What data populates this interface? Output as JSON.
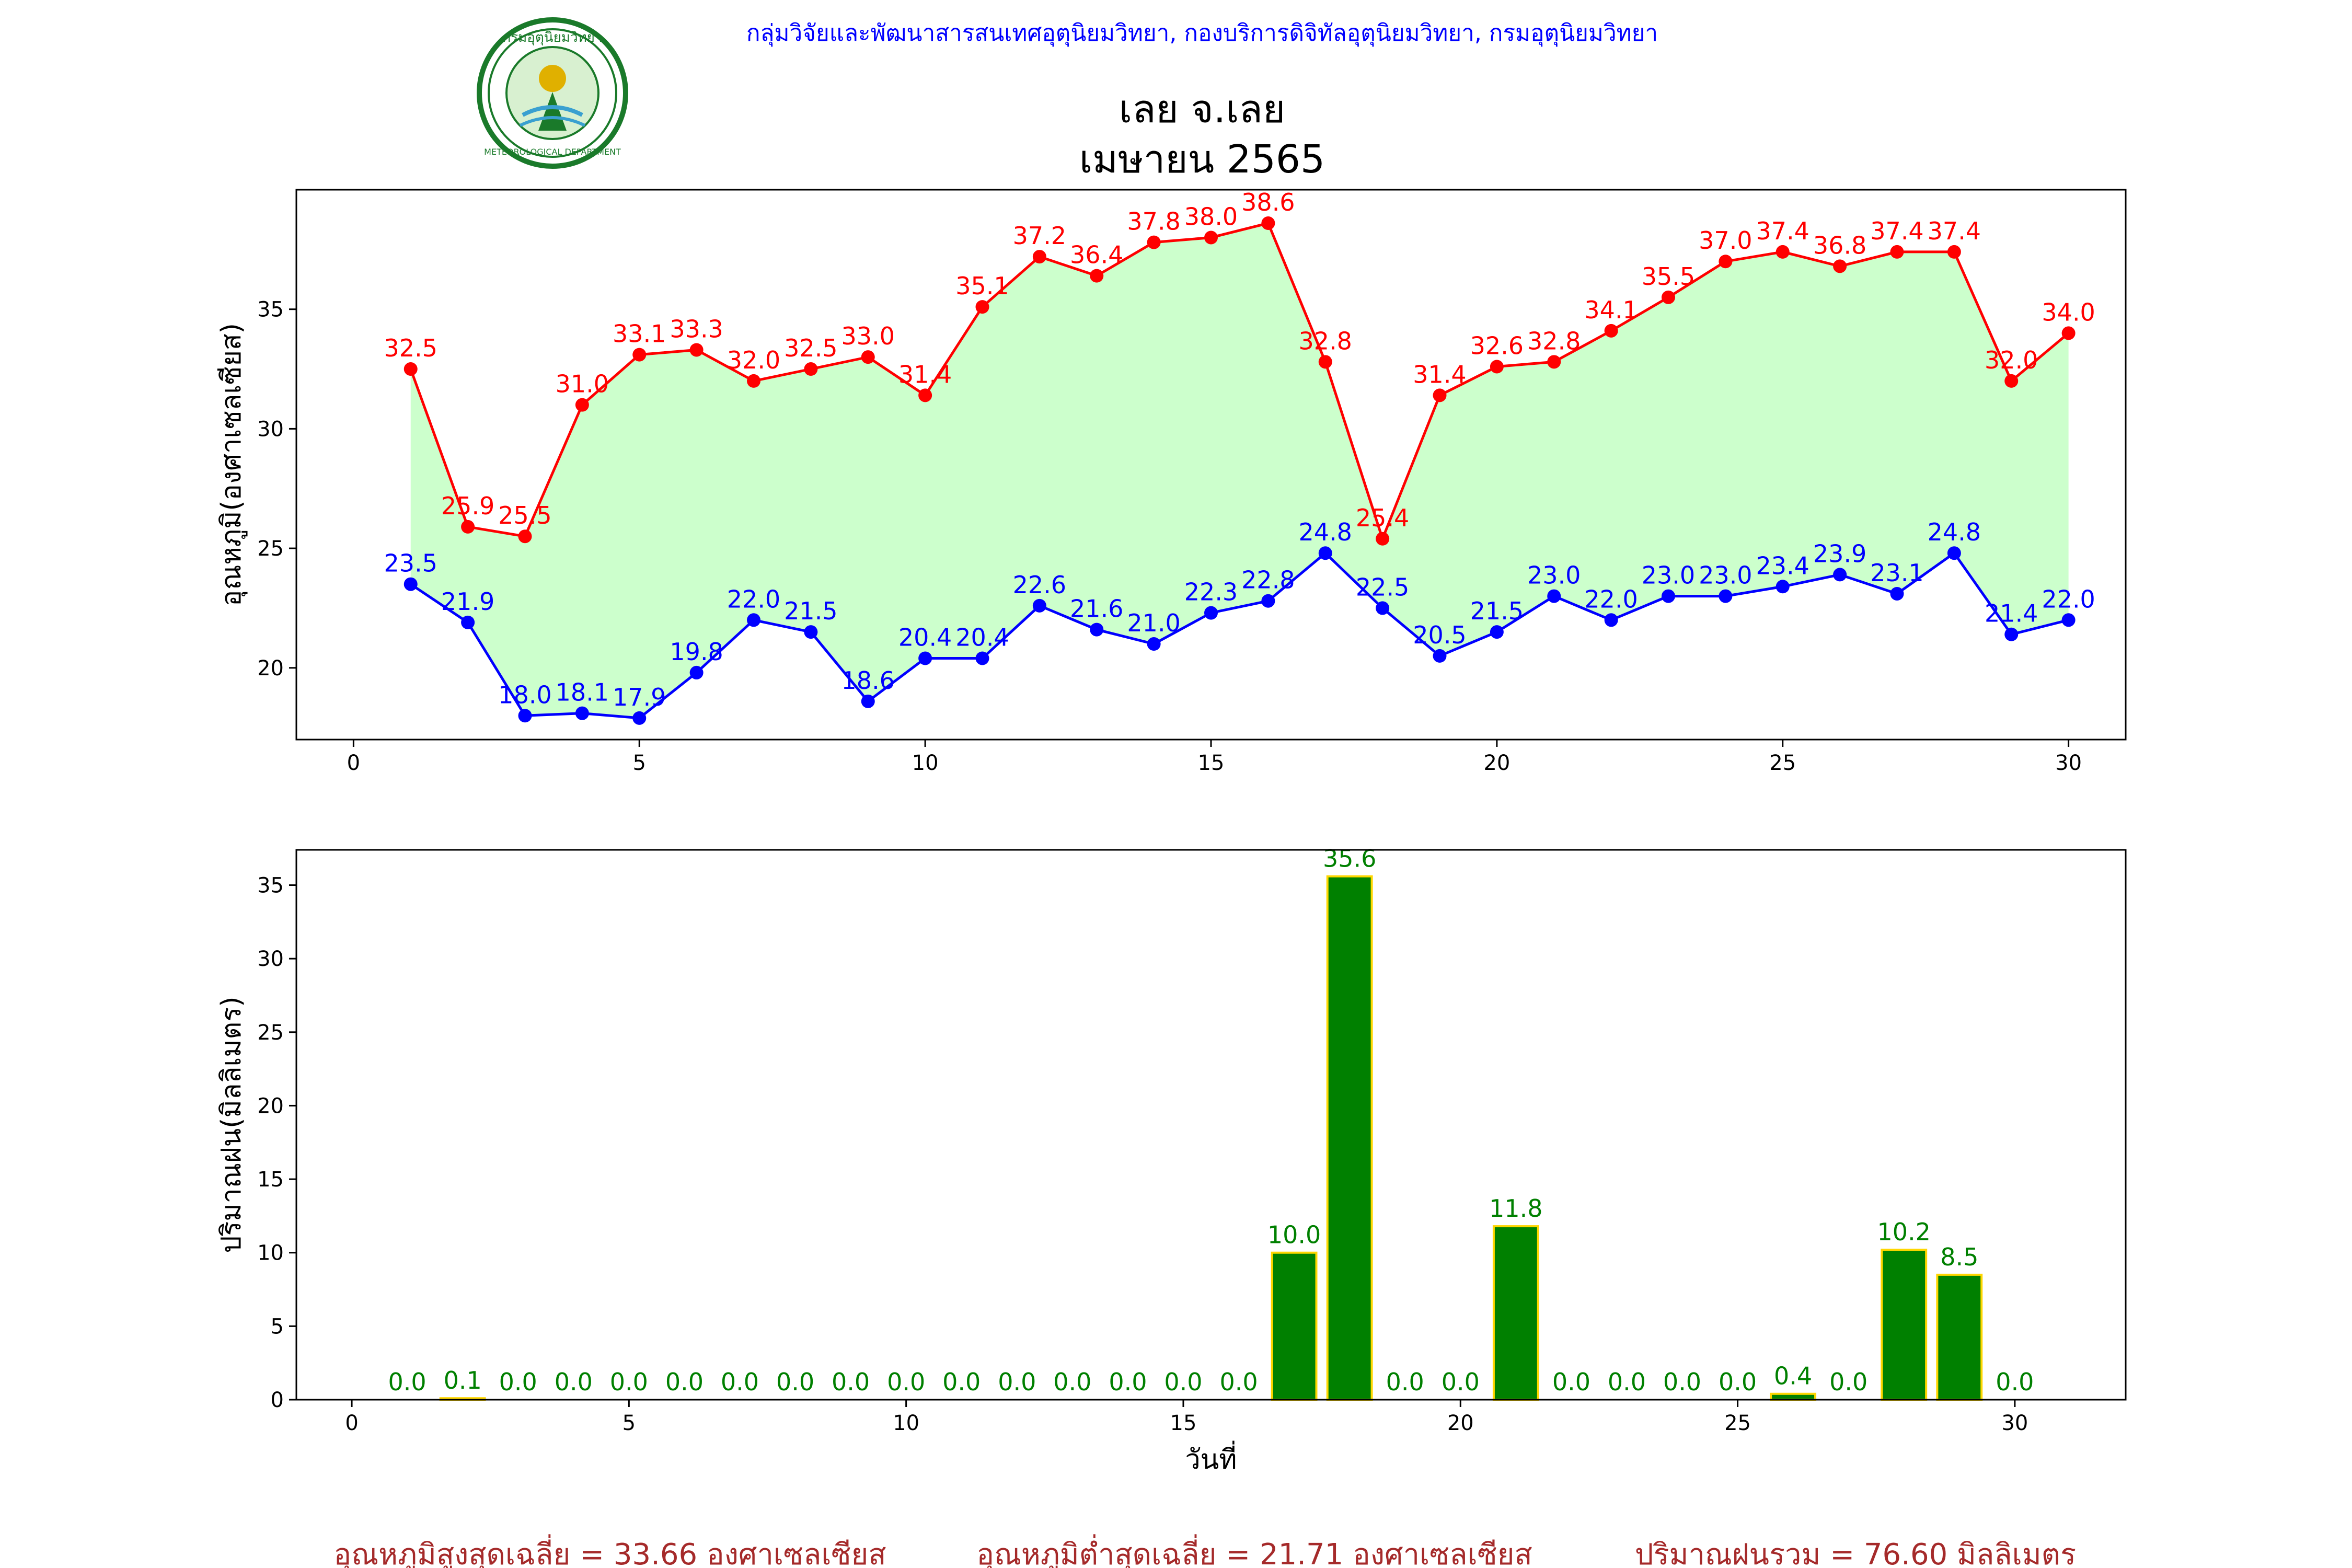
{
  "header": {
    "agency_line": "กลุ่มวิจัยและพัฒนาสารสนเทศอุตุนิยมวิทยา, กองบริการดิจิทัลอุตุนิยมวิทยา, กรมอุตุนิยมวิทยา",
    "agency_color": "#0000ff",
    "title_line1": "เลย จ.เลย",
    "title_line2": "เมษายน 2565",
    "logo": {
      "icon": "meteorological-department-seal-icon",
      "text_top": "กรมอุตุนิยมวิทยา",
      "text_bottom": "METEOROLOGICAL DEPARTMENT",
      "color": "#1a7a2a"
    }
  },
  "summary": {
    "avg_max_text": "อุณหภูมิสูงสุดเฉลี่ย = 33.66 องศาเซลเซียส",
    "avg_min_text": "อุณหภูมิต่ำสุดเฉลี่ย = 21.71 องศาเซลเซียส",
    "total_rain_text": "ปริมาณฝนรวม = 76.60 มิลลิเมตร",
    "color": "#a52a2a"
  },
  "chart_data": [
    {
      "type": "line",
      "ylabel": "อุณหภูมิ(องศาเซลเซียส)",
      "xlabel": "",
      "xlim": [
        -1,
        31
      ],
      "ylim": [
        17,
        40
      ],
      "xticks": [
        0,
        5,
        10,
        15,
        20,
        25,
        30
      ],
      "yticks": [
        20,
        25,
        30,
        35
      ],
      "x": [
        1,
        2,
        3,
        4,
        5,
        6,
        7,
        8,
        9,
        10,
        11,
        12,
        13,
        14,
        15,
        16,
        17,
        18,
        19,
        20,
        21,
        22,
        23,
        24,
        25,
        26,
        27,
        28,
        29,
        30
      ],
      "fill_between": {
        "color": "#ccffcc"
      },
      "series": [
        {
          "role": "max",
          "color": "#ff0000",
          "values": [
            32.5,
            25.9,
            25.5,
            31.0,
            33.1,
            33.3,
            32.0,
            32.5,
            33.0,
            31.4,
            35.1,
            37.2,
            36.4,
            37.8,
            38.0,
            38.6,
            32.8,
            25.4,
            31.4,
            32.6,
            32.8,
            34.1,
            35.5,
            37.0,
            37.4,
            36.8,
            37.4,
            37.4,
            32.0,
            34.0
          ]
        },
        {
          "role": "min",
          "color": "#0000ff",
          "values": [
            23.5,
            21.9,
            18.0,
            18.1,
            17.9,
            19.8,
            22.0,
            21.5,
            18.6,
            20.4,
            20.4,
            22.6,
            21.6,
            21.0,
            22.3,
            22.8,
            24.8,
            22.5,
            20.5,
            21.5,
            23.0,
            22.0,
            23.0,
            23.0,
            23.4,
            23.9,
            23.1,
            24.8,
            21.4,
            22.0
          ]
        }
      ]
    },
    {
      "type": "bar",
      "ylabel": "ปริมาณฝน(มิลลิเมตร)",
      "xlabel": "วันที่",
      "xlim": [
        -1,
        32
      ],
      "ylim": [
        0,
        37.4
      ],
      "xticks": [
        0,
        5,
        10,
        15,
        20,
        25,
        30
      ],
      "yticks": [
        0,
        5,
        10,
        15,
        20,
        25,
        30,
        35
      ],
      "bar_color": "#008000",
      "edge_color": "#ffd700",
      "label_color": "#008000",
      "x": [
        1,
        2,
        3,
        4,
        5,
        6,
        7,
        8,
        9,
        10,
        11,
        12,
        13,
        14,
        15,
        16,
        17,
        18,
        19,
        20,
        21,
        22,
        23,
        24,
        25,
        26,
        27,
        28,
        29,
        30
      ],
      "values": [
        0.0,
        0.1,
        0.0,
        0.0,
        0.0,
        0.0,
        0.0,
        0.0,
        0.0,
        0.0,
        0.0,
        0.0,
        0.0,
        0.0,
        0.0,
        0.0,
        10.0,
        35.6,
        0.0,
        0.0,
        11.8,
        0.0,
        0.0,
        0.0,
        0.0,
        0.4,
        0.0,
        10.2,
        8.5,
        0.0
      ]
    }
  ]
}
